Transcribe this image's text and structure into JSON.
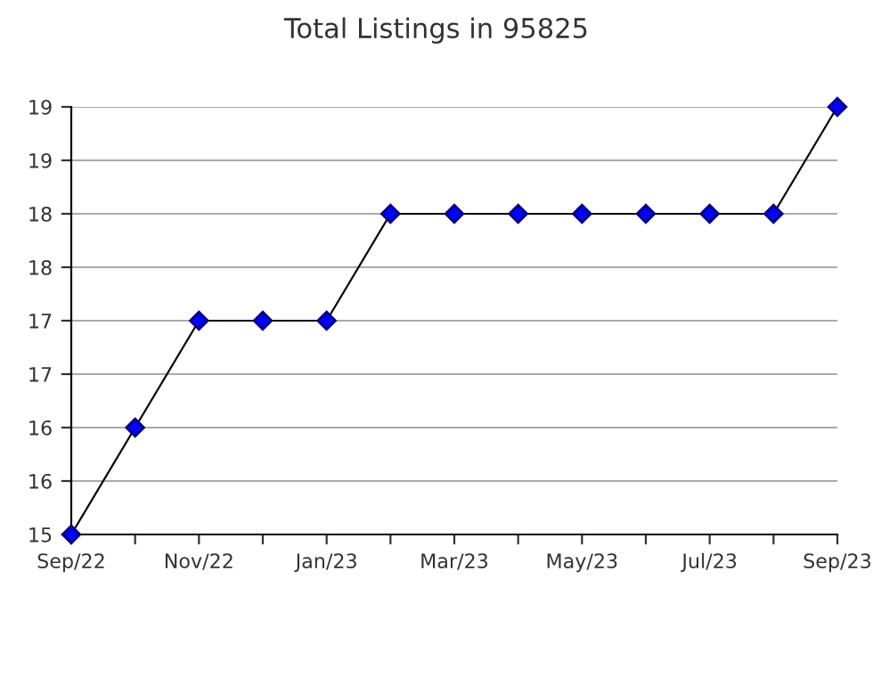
{
  "chart_data": {
    "type": "line",
    "title": "Total Listings in 95825",
    "categories": [
      "Sep/22",
      null,
      "Nov/22",
      null,
      "Jan/23",
      null,
      "Mar/23",
      null,
      "May/23",
      null,
      "Jul/23",
      null,
      "Sep/23"
    ],
    "series": [
      {
        "color": "#0000ff",
        "values": [
          15,
          16,
          17,
          17,
          17,
          18,
          18,
          18,
          18,
          18,
          18,
          18,
          19
        ]
      }
    ],
    "ylim": [
      15,
      19
    ],
    "yticks": [
      15,
      {
        "value": 15.5,
        "label": "16"
      },
      16,
      {
        "value": 16.5,
        "label": "17"
      },
      17,
      {
        "value": 17.5,
        "label": "18"
      },
      18,
      {
        "value": 18.5,
        "label": "19"
      },
      19
    ],
    "grid": "y",
    "marker": "diamond",
    "line_style": "solid",
    "legend": false
  }
}
